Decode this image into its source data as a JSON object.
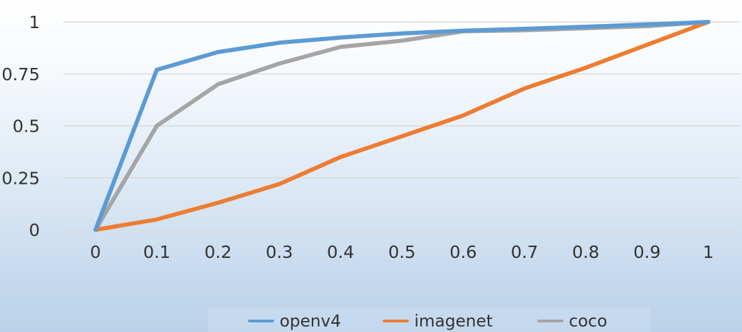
{
  "chart_data": {
    "type": "line",
    "title": "",
    "xlabel": "",
    "ylabel": "",
    "x": [
      0,
      0.1,
      0.2,
      0.3,
      0.4,
      0.5,
      0.6,
      0.7,
      0.8,
      0.9,
      1
    ],
    "x_tick_labels": [
      "0",
      "0.1",
      "0.2",
      "0.3",
      "0.4",
      "0.5",
      "0.6",
      "0.7",
      "0.8",
      "0.9",
      "1"
    ],
    "y_tick_labels": [
      "0",
      "0.25",
      "0.5",
      "0.75",
      "1"
    ],
    "y_ticks": [
      0,
      0.25,
      0.5,
      0.75,
      1
    ],
    "xlim": [
      0,
      1
    ],
    "ylim": [
      0,
      1
    ],
    "grid": "horizontal",
    "legend_position": "bottom",
    "series": [
      {
        "name": "openv4",
        "color": "#5b9bd5",
        "values": [
          0,
          0.77,
          0.855,
          0.9,
          0.925,
          0.945,
          0.958,
          0.967,
          0.977,
          0.988,
          1
        ]
      },
      {
        "name": "imagenet",
        "color": "#ed7d31",
        "values": [
          0,
          0.05,
          0.13,
          0.22,
          0.35,
          0.45,
          0.55,
          0.68,
          0.78,
          0.89,
          1
        ]
      },
      {
        "name": "coco",
        "color": "#a5a5a5",
        "values": [
          0,
          0.5,
          0.7,
          0.8,
          0.88,
          0.91,
          0.955,
          0.96,
          0.97,
          0.98,
          1
        ]
      }
    ]
  }
}
